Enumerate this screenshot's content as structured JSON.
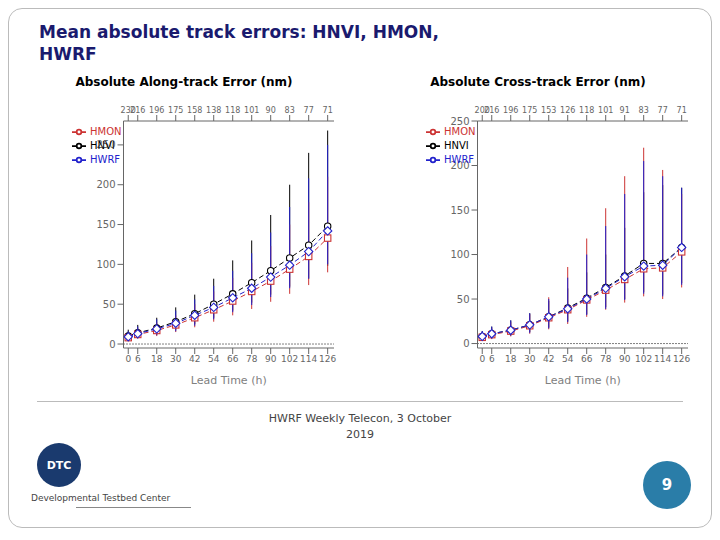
{
  "title": "Mean absolute track errors: HNVI, HMON,\nHWRF",
  "annotations": {
    "footer": "HWRF Weekly Telecon, 3 October\n2019",
    "logo": "DTC",
    "logo_caption": "Developmental Testbed Center",
    "page_number": "9"
  },
  "chart_data": [
    {
      "type": "line",
      "title": "Absolute Along-track Error (nm)",
      "x_label": "Lead Time (h)",
      "x": [
        0,
        6,
        18,
        30,
        42,
        54,
        66,
        78,
        90,
        102,
        114,
        126
      ],
      "xlim": [
        -3,
        130
      ],
      "xticks": [
        0,
        6,
        18,
        30,
        42,
        54,
        66,
        78,
        90,
        102,
        114,
        126
      ],
      "x2ticks": [
        {
          "value": 0,
          "label": "230"
        },
        {
          "value": 6,
          "label": "216"
        },
        {
          "value": 18,
          "label": "196"
        },
        {
          "value": 30,
          "label": "175"
        },
        {
          "value": 42,
          "label": "158"
        },
        {
          "value": 54,
          "label": "138"
        },
        {
          "value": 66,
          "label": "118"
        },
        {
          "value": 78,
          "label": "101"
        },
        {
          "value": 90,
          "label": "90"
        },
        {
          "value": 102,
          "label": "83"
        },
        {
          "value": 114,
          "label": "77"
        },
        {
          "value": 126,
          "label": "71"
        }
      ],
      "ylim": [
        -5,
        280
      ],
      "yticks": [
        0,
        50,
        100,
        150,
        200,
        250
      ],
      "hline": 0,
      "grid": false,
      "legend": "upper left",
      "series": [
        {
          "name": "HNVI",
          "color": "#000000",
          "marker": "circle",
          "line_style": "dashed",
          "values": [
            10,
            14,
            20,
            28,
            38,
            50,
            63,
            77,
            92,
            108,
            124,
            148
          ],
          "lower": [
            5,
            8,
            12,
            18,
            25,
            33,
            42,
            52,
            62,
            72,
            82,
            98
          ],
          "upper": [
            18,
            24,
            33,
            46,
            62,
            82,
            105,
            130,
            162,
            200,
            240,
            268
          ]
        },
        {
          "name": "HMON",
          "color": "#cc3333",
          "marker": "square",
          "line_style": "dashed",
          "values": [
            8,
            12,
            17,
            24,
            33,
            43,
            54,
            66,
            79,
            94,
            110,
            133
          ],
          "lower": [
            4,
            7,
            10,
            15,
            21,
            28,
            36,
            44,
            53,
            63,
            74,
            90
          ],
          "upper": [
            14,
            20,
            27,
            36,
            50,
            66,
            83,
            102,
            123,
            150,
            178,
            210
          ]
        },
        {
          "name": "HWRF",
          "color": "#2222cc",
          "marker": "diamond",
          "line_style": "dashed",
          "values": [
            9,
            13,
            19,
            26,
            36,
            46,
            58,
            70,
            84,
            99,
            116,
            142
          ],
          "lower": [
            4,
            7,
            11,
            16,
            23,
            31,
            40,
            49,
            59,
            70,
            82,
            100
          ],
          "upper": [
            16,
            22,
            31,
            42,
            56,
            73,
            92,
            114,
            140,
            172,
            208,
            250
          ]
        }
      ]
    },
    {
      "type": "line",
      "title": "Absolute Cross-track Error (nm)",
      "x_label": "Lead Time (h)",
      "x": [
        0,
        6,
        18,
        30,
        42,
        54,
        66,
        78,
        90,
        102,
        114,
        126
      ],
      "xlim": [
        -3,
        130
      ],
      "xticks": [
        0,
        6,
        18,
        30,
        42,
        54,
        66,
        78,
        90,
        102,
        114,
        126
      ],
      "x2ticks": [
        {
          "value": 0,
          "label": "200"
        },
        {
          "value": 6,
          "label": "216"
        },
        {
          "value": 18,
          "label": "196"
        },
        {
          "value": 30,
          "label": "175"
        },
        {
          "value": 42,
          "label": "153"
        },
        {
          "value": 54,
          "label": "126"
        },
        {
          "value": 66,
          "label": "118"
        },
        {
          "value": 78,
          "label": "101"
        },
        {
          "value": 90,
          "label": "91"
        },
        {
          "value": 102,
          "label": "83"
        },
        {
          "value": 114,
          "label": "77"
        },
        {
          "value": 126,
          "label": "71"
        }
      ],
      "ylim": [
        -5,
        250
      ],
      "yticks": [
        0,
        50,
        100,
        150,
        200,
        250
      ],
      "hline": 0,
      "grid": false,
      "legend": "upper left",
      "series": [
        {
          "name": "HNVI",
          "color": "#000000",
          "marker": "circle",
          "line_style": "dashed",
          "values": [
            8,
            11,
            15,
            21,
            30,
            40,
            51,
            63,
            76,
            90,
            90,
            108
          ],
          "lower": [
            4,
            6,
            9,
            13,
            18,
            25,
            33,
            41,
            50,
            58,
            55,
            68
          ],
          "upper": [
            14,
            19,
            26,
            34,
            48,
            62,
            80,
            100,
            130,
            170,
            178,
            175
          ]
        },
        {
          "name": "HMON",
          "color": "#cc3333",
          "marker": "square",
          "line_style": "dashed",
          "values": [
            7,
            10,
            14,
            20,
            29,
            38,
            49,
            60,
            72,
            84,
            85,
            103
          ],
          "lower": [
            3,
            5,
            8,
            11,
            16,
            22,
            30,
            38,
            46,
            53,
            50,
            63
          ],
          "upper": [
            13,
            17,
            24,
            33,
            52,
            86,
            118,
            152,
            188,
            220,
            195,
            168
          ]
        },
        {
          "name": "HWRF",
          "color": "#2222cc",
          "marker": "diamond",
          "line_style": "dashed",
          "values": [
            8,
            11,
            15,
            21,
            30,
            39,
            50,
            62,
            75,
            87,
            88,
            108
          ],
          "lower": [
            4,
            6,
            9,
            12,
            17,
            24,
            32,
            39,
            49,
            56,
            53,
            66
          ],
          "upper": [
            14,
            19,
            26,
            34,
            50,
            74,
            100,
            132,
            168,
            205,
            188,
            175
          ]
        }
      ]
    }
  ]
}
